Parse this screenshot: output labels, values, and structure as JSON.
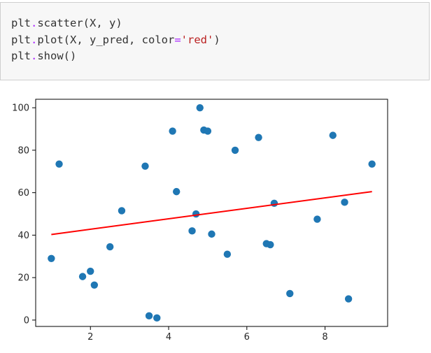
{
  "code_cell": {
    "lines": [
      [
        {
          "t": "plt",
          "k": "name"
        },
        {
          "t": ".",
          "k": "op"
        },
        {
          "t": "scatter(X, y)",
          "k": "name"
        }
      ],
      [
        {
          "t": "plt",
          "k": "name"
        },
        {
          "t": ".",
          "k": "op"
        },
        {
          "t": "plot(X, y_pred, color",
          "k": "name"
        },
        {
          "t": "=",
          "k": "op"
        },
        {
          "t": "'red'",
          "k": "str"
        },
        {
          "t": ")",
          "k": "name"
        }
      ],
      [
        {
          "t": "plt",
          "k": "name"
        },
        {
          "t": ".",
          "k": "op"
        },
        {
          "t": "show()",
          "k": "name"
        }
      ]
    ]
  },
  "chart_data": {
    "type": "scatter",
    "xlim": [
      0.6,
      9.6
    ],
    "ylim": [
      -3,
      104
    ],
    "xticks": [
      2,
      4,
      6,
      8
    ],
    "yticks": [
      0,
      20,
      40,
      60,
      80,
      100
    ],
    "grid": false,
    "scatter_color": "#1f77b4",
    "line_color": "#ff0000",
    "points": [
      [
        1.0,
        29
      ],
      [
        1.2,
        73.5
      ],
      [
        1.8,
        20.5
      ],
      [
        2.0,
        23
      ],
      [
        2.1,
        16.5
      ],
      [
        2.5,
        34.5
      ],
      [
        2.8,
        51.5
      ],
      [
        3.4,
        72.5
      ],
      [
        3.5,
        2
      ],
      [
        3.7,
        1
      ],
      [
        4.1,
        89
      ],
      [
        4.2,
        60.5
      ],
      [
        4.6,
        42
      ],
      [
        4.7,
        50
      ],
      [
        4.8,
        100
      ],
      [
        4.9,
        89.5
      ],
      [
        5.0,
        89
      ],
      [
        5.1,
        40.5
      ],
      [
        5.5,
        31
      ],
      [
        5.7,
        80
      ],
      [
        6.3,
        86
      ],
      [
        6.5,
        36
      ],
      [
        6.6,
        35.5
      ],
      [
        6.7,
        55
      ],
      [
        7.1,
        12.5
      ],
      [
        7.8,
        47.5
      ],
      [
        8.2,
        87
      ],
      [
        8.5,
        55.5
      ],
      [
        8.6,
        10
      ],
      [
        9.2,
        73.5
      ]
    ],
    "regression_line": [
      [
        1.0,
        40.3
      ],
      [
        9.2,
        60.5
      ]
    ]
  }
}
